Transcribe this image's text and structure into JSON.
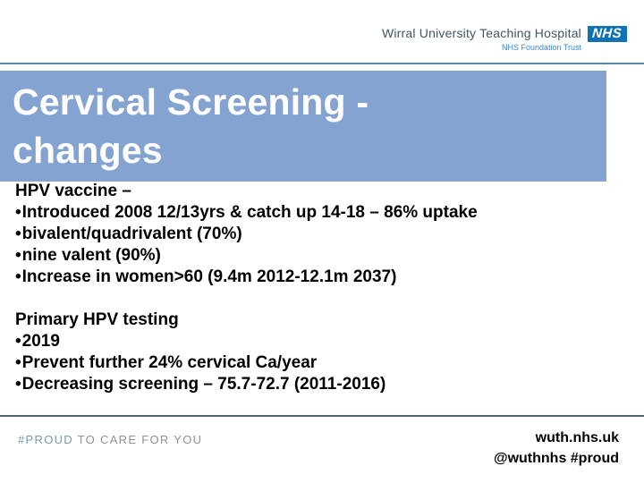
{
  "header": {
    "org_name": "Wirral University Teaching Hospital",
    "org_subtitle": "NHS Foundation Trust",
    "nhs_logo_text": "NHS"
  },
  "slide": {
    "title_line1": "Cervical Screening -",
    "title_line2": "changes",
    "bullet_char": "•",
    "sections": [
      {
        "heading": "HPV vaccine –",
        "bullets": [
          "Introduced 2008 12/13yrs & catch up 14-18 – 86% uptake",
          "bivalent/quadrivalent (70%)",
          "nine valent (90%)",
          "Increase in women>60 (9.4m 2012-12.1m 2037)"
        ]
      },
      {
        "heading": "Primary HPV testing",
        "bullets": [
          "2019",
          "Prevent further 24% cervical Ca/year",
          "Decreasing screening – 75.7-72.7 (2011-2016)"
        ]
      }
    ]
  },
  "footer": {
    "hashtag": "#PROUD",
    "tagline": "TO CARE FOR YOU",
    "website": "wuth.nhs.uk",
    "social": "@wuthnhs #proud"
  },
  "colors": {
    "banner_blue": "#85a3d1",
    "nhs_logo_blue": "#0e72b5",
    "org_name_color": "#425563",
    "org_subtitle_blue": "#3a87c8",
    "header_rule_blue": "#5e87ae",
    "footer_rule_grey": "#4e646e",
    "footer_hashtag_blue": "#7f96ad",
    "footer_tagline_grey": "#8e9294"
  }
}
